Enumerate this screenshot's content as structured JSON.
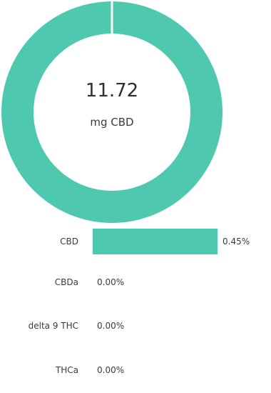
{
  "colors": {
    "accent": "#4ec9b0"
  },
  "donut": {
    "value": "11.72",
    "unit": "mg CBD"
  },
  "chart_data": [
    {
      "type": "pie",
      "variant": "donut",
      "slices": [
        {
          "label": "CBD",
          "value": 100
        }
      ],
      "center_value": "11.72",
      "center_label": "mg CBD"
    },
    {
      "type": "bar",
      "orientation": "horizontal",
      "categories": [
        "CBD",
        "CBDa",
        "delta 9 THC",
        "THCa"
      ],
      "values": [
        0.45,
        0.0,
        0.0,
        0.0
      ],
      "value_labels": [
        "0.45%",
        "0.00%",
        "0.00%",
        "0.00%"
      ],
      "max": 0.45
    }
  ]
}
